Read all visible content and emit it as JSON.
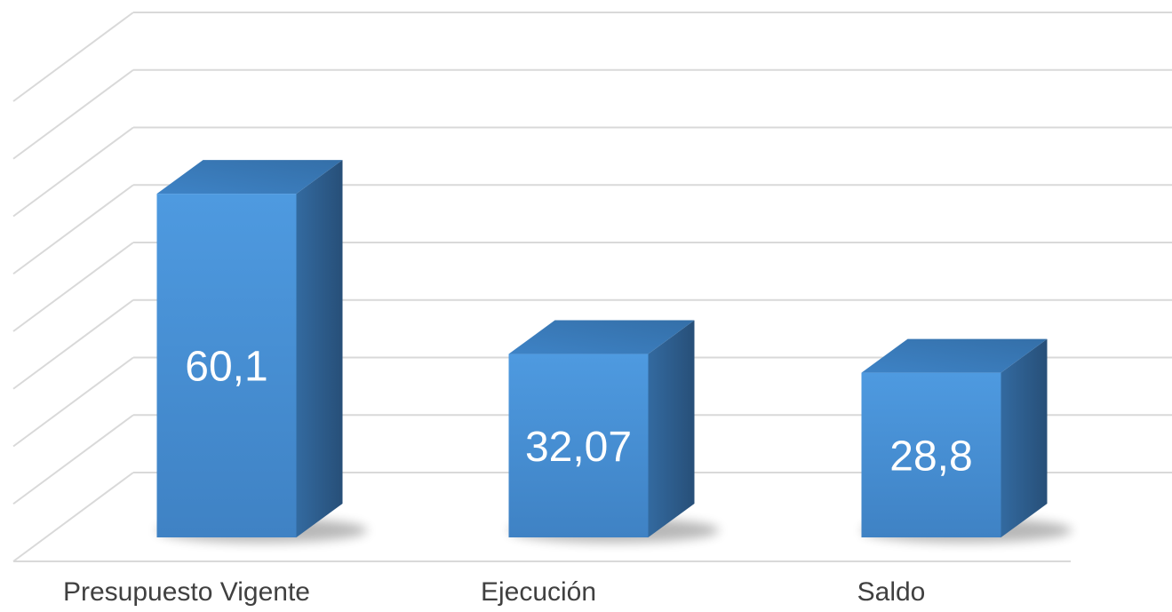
{
  "chart_data": {
    "type": "bar",
    "categories": [
      "Presupuesto Vigente",
      "Ejecución",
      "Saldo"
    ],
    "values": [
      60.1,
      32.07,
      28.8
    ],
    "data_labels": [
      "60,1",
      "32,07",
      "28,8"
    ],
    "title": "",
    "xlabel": "",
    "ylabel": "",
    "ylim": [
      0,
      80
    ],
    "grid": true,
    "legend": "none",
    "style": "3d",
    "colors": {
      "bar_front": "#4a93d6",
      "bar_top": "#3c7fbf",
      "bar_side": "#2d5f8f",
      "grid": "#d9d9d9",
      "category_text": "#404040",
      "label_text": "#ffffff"
    }
  }
}
